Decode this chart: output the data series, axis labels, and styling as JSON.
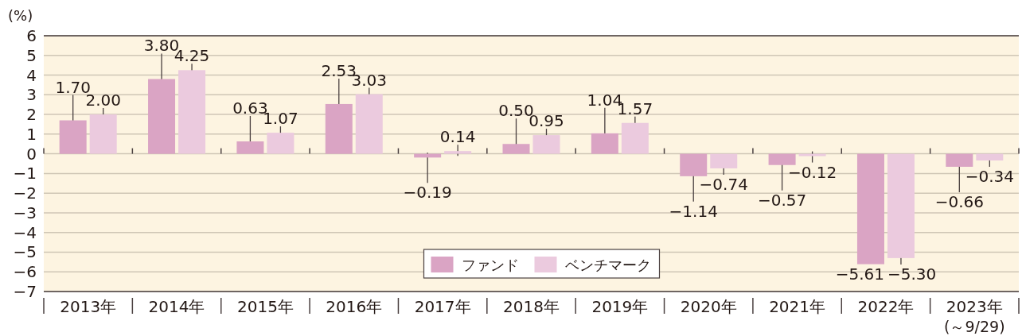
{
  "chart_data": {
    "type": "bar",
    "ylabel": "(%)",
    "categories": [
      "2013年",
      "2014年",
      "2015年",
      "2016年",
      "2017年",
      "2018年",
      "2019年",
      "2020年",
      "2021年",
      "2022年",
      "2023年"
    ],
    "series": [
      {
        "name": "ファンド",
        "color": "#daa4c4",
        "values": [
          1.7,
          3.8,
          0.63,
          2.53,
          -0.19,
          0.5,
          1.04,
          -1.14,
          -0.57,
          -5.61,
          -0.66
        ],
        "value_labels": [
          "1.70",
          "3.80",
          "0.63",
          "2.53",
          "−0.19",
          "0.50",
          "1.04",
          "−1.14",
          "−0.57",
          "−5.61",
          "−0.66"
        ]
      },
      {
        "name": "ベンチマーク",
        "color": "#ebcade",
        "values": [
          2.0,
          4.25,
          1.07,
          3.03,
          0.14,
          0.95,
          1.57,
          -0.74,
          -0.12,
          -5.3,
          -0.34
        ],
        "value_labels": [
          "2.00",
          "4.25",
          "1.07",
          "3.03",
          "0.14",
          "0.95",
          "1.57",
          "−0.74",
          "−0.12",
          "−5.30",
          "−0.34"
        ]
      }
    ],
    "ylim": [
      -7,
      6
    ],
    "yticks": [
      {
        "value": -7,
        "label": "−7"
      },
      {
        "value": -6,
        "label": "−6"
      },
      {
        "value": -5,
        "label": "−5"
      },
      {
        "value": -4,
        "label": "−4"
      },
      {
        "value": -3,
        "label": "−3"
      },
      {
        "value": -2,
        "label": "−2"
      },
      {
        "value": -1,
        "label": "−1"
      },
      0,
      1,
      2,
      3,
      4,
      5,
      6
    ],
    "grid": "y",
    "legend": "bottom",
    "annotations": [
      "(～9/29)"
    ]
  }
}
